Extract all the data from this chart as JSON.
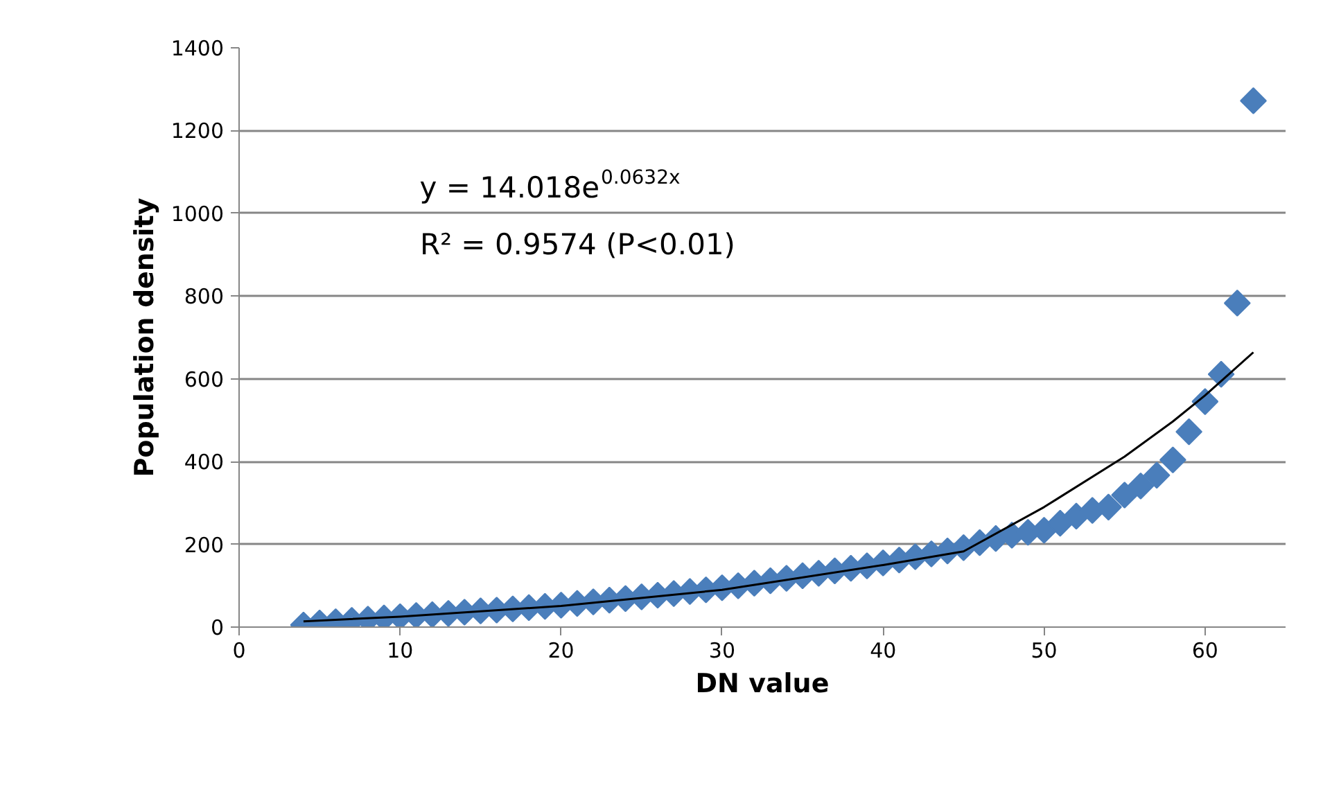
{
  "chart_data": {
    "type": "scatter",
    "xlabel": "DN value",
    "ylabel": "Population density",
    "xlim": [
      0,
      65
    ],
    "xticks": [
      0,
      10,
      20,
      30,
      40,
      50,
      60
    ],
    "ylim": [
      0,
      1400
    ],
    "yticks": [
      0,
      200,
      400,
      600,
      800,
      1000,
      1200,
      1400
    ],
    "grid": "y",
    "series": [
      {
        "color": "#4a7ebb",
        "marker": "diamond",
        "x": [
          4,
          5,
          6,
          7,
          8,
          9,
          10,
          11,
          12,
          13,
          14,
          15,
          16,
          17,
          18,
          19,
          20,
          21,
          22,
          23,
          24,
          25,
          26,
          27,
          28,
          29,
          30,
          31,
          32,
          33,
          34,
          35,
          36,
          37,
          38,
          39,
          40,
          41,
          42,
          43,
          44,
          45,
          46,
          47,
          48,
          49,
          50,
          51,
          52,
          53,
          54,
          55,
          56,
          57,
          58,
          59,
          60,
          61,
          62,
          63
        ],
        "values": [
          5,
          10,
          13,
          16,
          19,
          22,
          25,
          28,
          30,
          33,
          36,
          39,
          41,
          44,
          47,
          50,
          53,
          57,
          61,
          65,
          69,
          73,
          77,
          81,
          86,
          90,
          95,
          100,
          106,
          112,
          118,
          124,
          130,
          136,
          142,
          148,
          155,
          162,
          170,
          177,
          184,
          192,
          204,
          214,
          222,
          229,
          234,
          251,
          268,
          282,
          290,
          319,
          341,
          367,
          404,
          472,
          545,
          611,
          783,
          1272
        ]
      },
      {
        "type": "line",
        "color": "#000000",
        "x": [
          4,
          10,
          20,
          30,
          40,
          45,
          50,
          55,
          58,
          60,
          63
        ],
        "values": [
          14,
          25,
          51,
          90,
          150,
          183,
          290,
          412,
          497,
          560,
          664
        ]
      }
    ],
    "annotations": [
      "y = 14.018e$^{0.0632x}$",
      "R² = 0.9574 (P<0.01)"
    ]
  }
}
